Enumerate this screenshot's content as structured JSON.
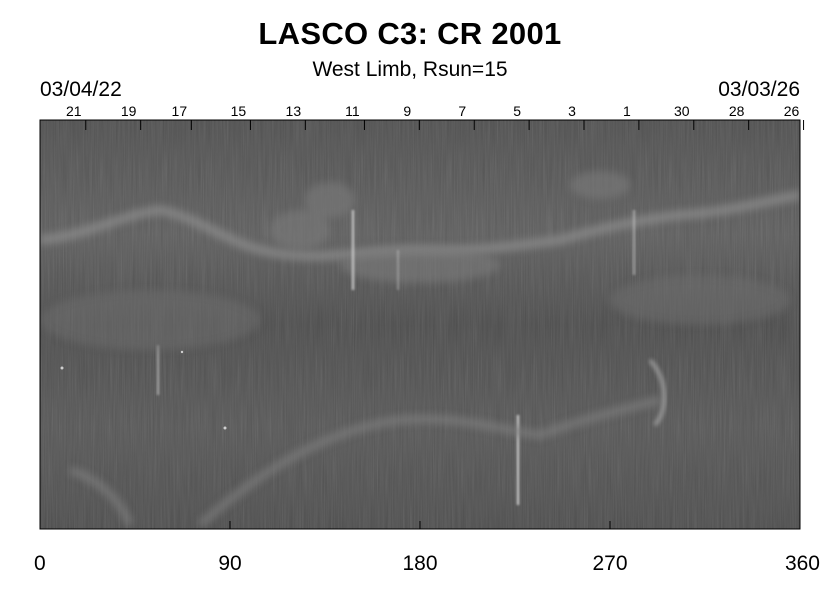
{
  "title": "LASCO C3: CR 2001",
  "subtitle": "West Limb, Rsun=15",
  "date_start": "03/04/22",
  "date_end": "03/03/26",
  "day_ticks": [
    {
      "label": "21",
      "deg": 8
    },
    {
      "label": "19",
      "deg": 21
    },
    {
      "label": "17",
      "deg": 33
    },
    {
      "label": "15",
      "deg": 47
    },
    {
      "label": "13",
      "deg": 60
    },
    {
      "label": "11",
      "deg": 74
    },
    {
      "label": "9",
      "deg": 87
    },
    {
      "label": "7",
      "deg": 100
    },
    {
      "label": "5",
      "deg": 113
    },
    {
      "label": "3",
      "deg": 126
    },
    {
      "label": "1",
      "deg": 139
    },
    {
      "label": "30",
      "deg": 152
    },
    {
      "label": "28",
      "deg": 165
    },
    {
      "label": "26",
      "deg": 178
    }
  ],
  "x_axis": {
    "ticks": [
      "0",
      "90",
      "180",
      "270",
      "360"
    ],
    "range": [
      0,
      360
    ]
  },
  "colors": {
    "background": "#ffffff",
    "image_base": "#575757",
    "streamer": "#8a8a8a"
  }
}
